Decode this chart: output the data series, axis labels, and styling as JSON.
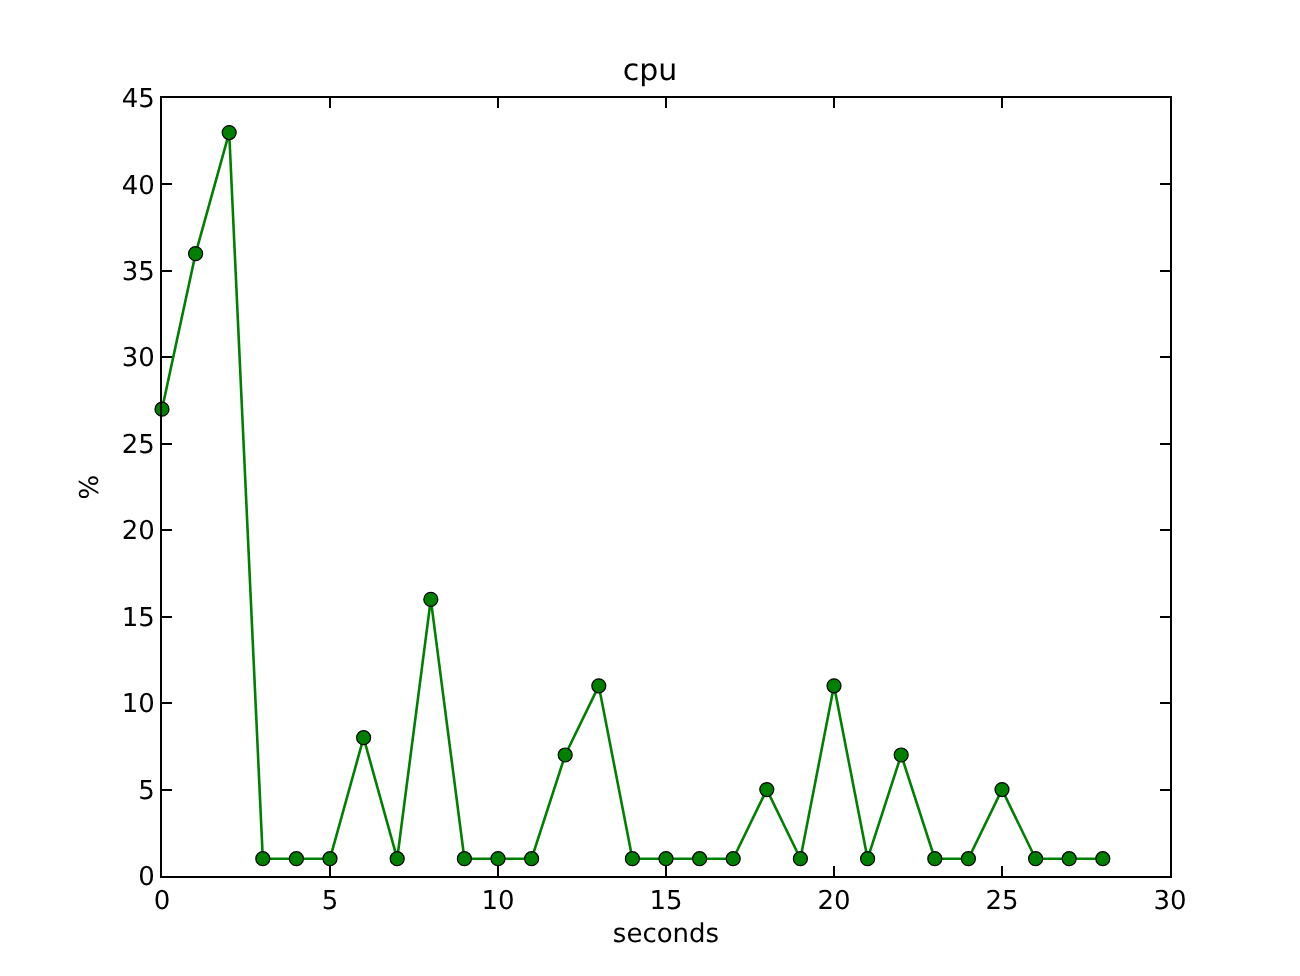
{
  "chart_data": {
    "type": "line",
    "title": "cpu",
    "xlabel": "seconds",
    "ylabel": "%",
    "x": [
      0,
      1,
      2,
      3,
      4,
      5,
      6,
      7,
      8,
      9,
      10,
      11,
      12,
      13,
      14,
      15,
      16,
      17,
      18,
      19,
      20,
      21,
      22,
      23,
      24,
      25,
      26,
      27,
      28
    ],
    "series": [
      {
        "color": "#008000",
        "values": [
          27,
          36,
          43,
          1,
          1,
          1,
          8,
          1,
          16,
          1,
          1,
          1,
          7,
          11,
          1,
          1,
          1,
          1,
          5,
          1,
          11,
          1,
          7,
          1,
          1,
          5,
          1,
          1,
          1
        ]
      }
    ],
    "xlim": [
      0,
      30
    ],
    "xticks": [
      0,
      5,
      10,
      15,
      20,
      25,
      30
    ],
    "ylim": [
      0,
      45
    ],
    "yticks": [
      0,
      5,
      10,
      15,
      20,
      25,
      30,
      35,
      40,
      45
    ],
    "marker": "circle",
    "line_style": "solid"
  }
}
